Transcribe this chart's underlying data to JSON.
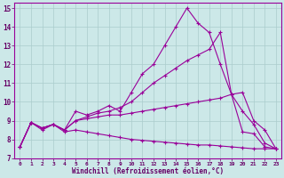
{
  "background_color": "#cce8e8",
  "line_color": "#990099",
  "grid_color": "#aacccc",
  "xlabel": "Windchill (Refroidissement éolien,°C)",
  "xlabel_color": "#660066",
  "tick_color": "#660066",
  "xlim": [
    -0.5,
    23.5
  ],
  "ylim": [
    7,
    15.3
  ],
  "yticks": [
    7,
    8,
    9,
    10,
    11,
    12,
    13,
    14,
    15
  ],
  "xticks": [
    0,
    1,
    2,
    3,
    4,
    5,
    6,
    7,
    8,
    9,
    10,
    11,
    12,
    13,
    14,
    15,
    16,
    17,
    18,
    19,
    20,
    21,
    22,
    23
  ],
  "lines": [
    {
      "x": [
        0,
        1,
        2,
        3,
        4,
        5,
        6,
        7,
        8,
        9,
        10,
        11,
        12,
        13,
        14,
        15,
        16,
        17,
        18,
        19,
        20,
        21,
        22,
        23
      ],
      "y": [
        7.6,
        8.9,
        8.6,
        8.8,
        8.5,
        9.5,
        9.3,
        9.5,
        9.8,
        9.5,
        10.5,
        11.5,
        12.0,
        13.0,
        14.0,
        15.0,
        14.2,
        13.7,
        12.0,
        10.4,
        8.4,
        8.3,
        7.6,
        7.5
      ]
    },
    {
      "x": [
        0,
        1,
        2,
        3,
        4,
        5,
        6,
        7,
        8,
        9,
        10,
        11,
        12,
        13,
        14,
        15,
        16,
        17,
        18,
        19,
        20,
        21,
        22,
        23
      ],
      "y": [
        7.6,
        8.9,
        8.6,
        8.8,
        8.5,
        9.0,
        9.2,
        9.4,
        9.5,
        9.7,
        10.0,
        10.5,
        11.0,
        11.4,
        11.8,
        12.2,
        12.5,
        12.8,
        13.7,
        10.4,
        9.5,
        8.8,
        7.8,
        7.5
      ]
    },
    {
      "x": [
        0,
        1,
        2,
        3,
        4,
        5,
        6,
        7,
        8,
        9,
        10,
        11,
        12,
        13,
        14,
        15,
        16,
        17,
        18,
        19,
        20,
        21,
        22,
        23
      ],
      "y": [
        7.6,
        8.9,
        8.6,
        8.8,
        8.5,
        9.0,
        9.1,
        9.2,
        9.3,
        9.3,
        9.4,
        9.5,
        9.6,
        9.7,
        9.8,
        9.9,
        10.0,
        10.1,
        10.2,
        10.4,
        10.5,
        9.0,
        8.5,
        7.5
      ]
    },
    {
      "x": [
        0,
        1,
        2,
        3,
        4,
        5,
        6,
        7,
        8,
        9,
        10,
        11,
        12,
        13,
        14,
        15,
        16,
        17,
        18,
        19,
        20,
        21,
        22,
        23
      ],
      "y": [
        7.6,
        8.9,
        8.5,
        8.8,
        8.4,
        8.5,
        8.4,
        8.3,
        8.2,
        8.1,
        8.0,
        7.95,
        7.9,
        7.85,
        7.8,
        7.75,
        7.7,
        7.7,
        7.65,
        7.6,
        7.55,
        7.5,
        7.5,
        7.5
      ]
    }
  ]
}
